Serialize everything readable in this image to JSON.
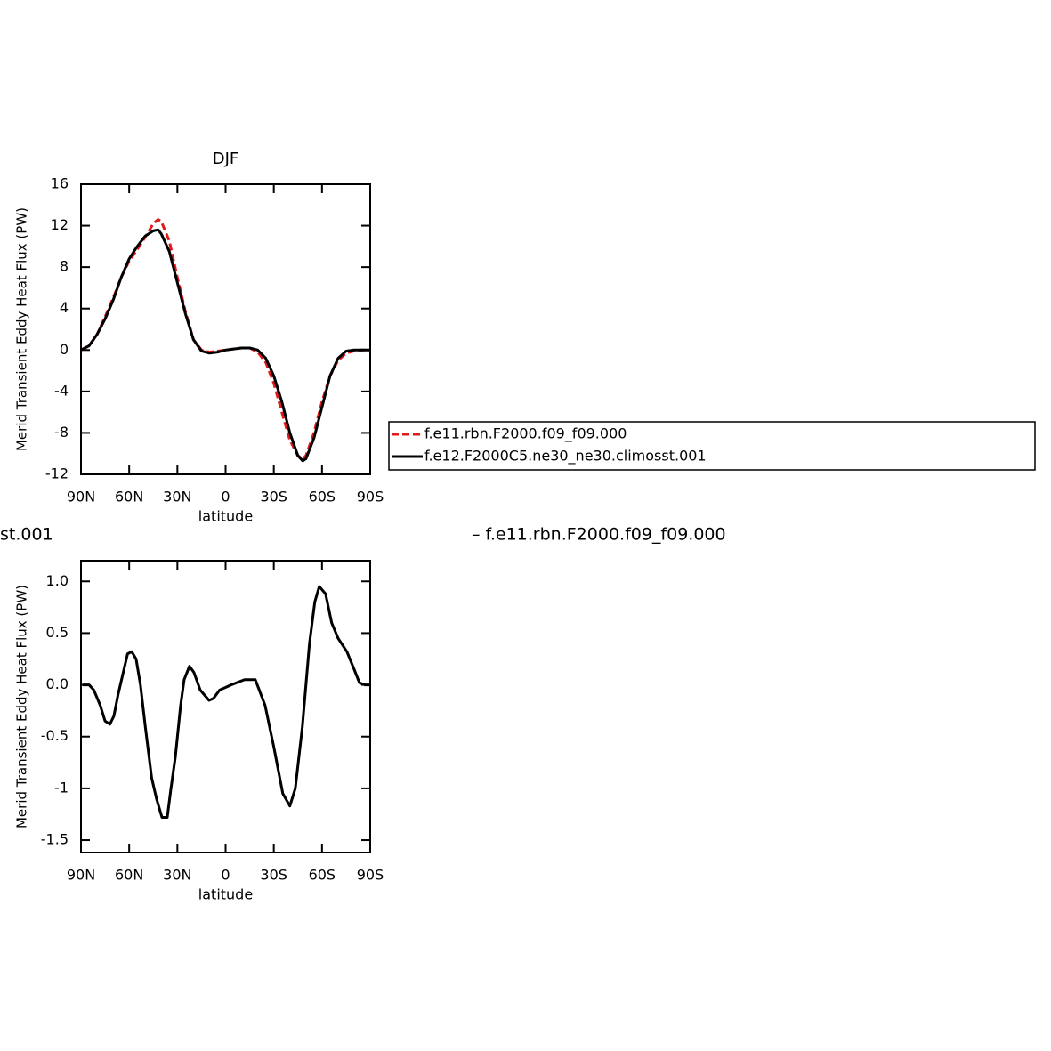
{
  "chart_data": [
    {
      "type": "line",
      "title": "DJF",
      "x_label": "latitude",
      "y_label": "Merid Transient Eddy Heat Flux (PW)",
      "x": [
        90,
        85,
        80,
        75,
        70,
        65,
        60,
        55,
        50,
        45,
        42,
        40,
        35,
        30,
        25,
        20,
        15,
        10,
        5,
        0,
        -5,
        -10,
        -15,
        -20,
        -25,
        -30,
        -35,
        -40,
        -45,
        -48,
        -50,
        -55,
        -60,
        -65,
        -70,
        -75,
        -80,
        -85,
        -90
      ],
      "series": [
        {
          "name": "f.e11.rbn.F2000.f09_f09.000",
          "color": "#e31a1c",
          "style": "dashed",
          "values": [
            0,
            0.4,
            1.5,
            3.2,
            5,
            7,
            8.6,
            9.7,
            10.9,
            12.2,
            12.6,
            12.4,
            10.5,
            7,
            3.7,
            1,
            0,
            -0.2,
            -0.1,
            0,
            0.1,
            0.2,
            0.2,
            -0.2,
            -1.2,
            -3.2,
            -6,
            -8.7,
            -10.2,
            -10.5,
            -10.2,
            -8,
            -5,
            -2.5,
            -1,
            -0.3,
            -0.1,
            0,
            0
          ]
        },
        {
          "name": "f.e12.F2000C5.ne30_ne30.climosst.001",
          "color": "#000000",
          "style": "solid",
          "values": [
            0,
            0.4,
            1.5,
            3,
            4.8,
            7,
            8.8,
            10,
            11,
            11.5,
            11.6,
            11.2,
            9.5,
            6.5,
            3.5,
            1,
            -0.1,
            -0.3,
            -0.2,
            0,
            0.1,
            0.2,
            0.2,
            0,
            -0.8,
            -2.5,
            -5,
            -8,
            -10.2,
            -10.7,
            -10.5,
            -8.5,
            -5.5,
            -2.5,
            -0.8,
            -0.1,
            0,
            0,
            0
          ]
        }
      ],
      "xlim": [
        90,
        -90
      ],
      "xticks": [
        {
          "value": 90,
          "label": "90N"
        },
        {
          "value": 60,
          "label": "60N"
        },
        {
          "value": 30,
          "label": "30N"
        },
        0,
        {
          "value": -30,
          "label": "30S"
        },
        {
          "value": -60,
          "label": "60S"
        },
        {
          "value": -90,
          "label": "90S"
        }
      ],
      "ylim": [
        -12,
        16
      ],
      "yticks": [
        -12,
        -8,
        -4,
        0,
        4,
        8,
        12,
        16
      ],
      "legend": "right"
    },
    {
      "type": "line",
      "x_label": "latitude",
      "y_label": "Merid Transient Eddy Heat Flux (PW)",
      "x": [
        89,
        85,
        82,
        78,
        75,
        72,
        69.5,
        67,
        64,
        61,
        58.4,
        55.7,
        53,
        50,
        46,
        43,
        39.6,
        36.3,
        34,
        31.3,
        28,
        25.8,
        22.5,
        19.7,
        15.8,
        10.3,
        7.5,
        3.7,
        -3.5,
        -11.8,
        -18.5,
        -24.6,
        -30,
        -35.6,
        -40,
        -43.4,
        -47.8,
        -52.2,
        -55.5,
        -58.3,
        -62.2,
        -66,
        -70,
        -75.5,
        -80,
        -83.3,
        -86.7,
        -90
      ],
      "series": [
        {
          "color": "#000000",
          "style": "solid",
          "values": [
            0,
            0,
            -0.05,
            -0.2,
            -0.35,
            -0.38,
            -0.3,
            -0.1,
            0.1,
            0.3,
            0.32,
            0.25,
            0,
            -0.4,
            -0.9,
            -1.1,
            -1.28,
            -1.28,
            -1.0,
            -0.7,
            -0.2,
            0.05,
            0.18,
            0.12,
            -0.05,
            -0.15,
            -0.13,
            -0.05,
            0,
            0.05,
            0.05,
            -0.2,
            -0.6,
            -1.05,
            -1.17,
            -1.0,
            -0.4,
            0.4,
            0.8,
            0.95,
            0.88,
            0.6,
            0.45,
            0.32,
            0.15,
            0.02,
            0,
            0
          ]
        }
      ],
      "xlim": [
        90,
        -90
      ],
      "xticks": [
        {
          "value": 90,
          "label": "90N"
        },
        {
          "value": 60,
          "label": "60N"
        },
        {
          "value": 30,
          "label": "30N"
        },
        0,
        {
          "value": -30,
          "label": "30S"
        },
        {
          "value": -60,
          "label": "60S"
        },
        {
          "value": -90,
          "label": "90S"
        }
      ],
      "ylim": [
        -1.62,
        1.2
      ],
      "yticks": [
        -1.5,
        -1,
        -0.5,
        {
          "value": 0,
          "label": "0.0"
        },
        0.5,
        {
          "value": 1,
          "label": "1.0"
        }
      ],
      "annotations": [
        "st.001",
        "– f.e11.rbn.F2000.f09_f09.000"
      ]
    }
  ]
}
